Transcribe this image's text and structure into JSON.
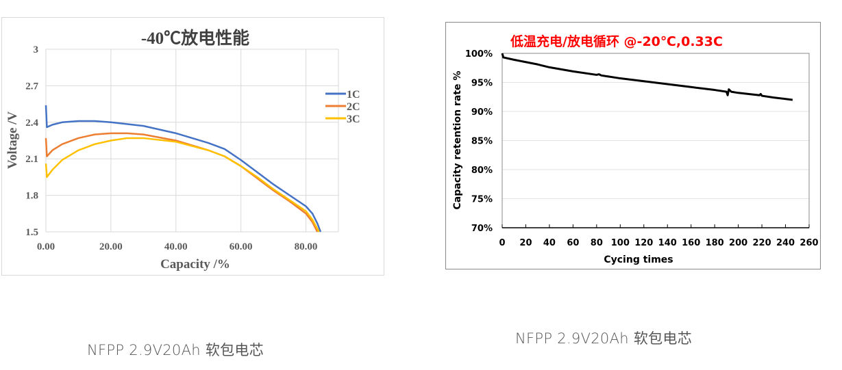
{
  "chart_data": [
    {
      "type": "line",
      "title": "-40℃放电性能",
      "xlabel": "Capacity /%",
      "ylabel": "Voltage /V",
      "xlim": [
        0,
        90
      ],
      "ylim": [
        1.5,
        3
      ],
      "x_ticks": [
        "0.00",
        "20.00",
        "40.00",
        "60.00",
        "80.00"
      ],
      "y_ticks": [
        "1.5",
        "1.8",
        "2.1",
        "2.4",
        "2.7",
        "3"
      ],
      "grid": true,
      "legend": "right",
      "series": [
        {
          "name": "1C",
          "color": "#4472C4",
          "points": [
            [
              0,
              2.54
            ],
            [
              0.3,
              2.36
            ],
            [
              2,
              2.38
            ],
            [
              5,
              2.4
            ],
            [
              10,
              2.41
            ],
            [
              15,
              2.41
            ],
            [
              20,
              2.4
            ],
            [
              30,
              2.37
            ],
            [
              40,
              2.31
            ],
            [
              50,
              2.23
            ],
            [
              55,
              2.18
            ],
            [
              60,
              2.09
            ],
            [
              65,
              1.99
            ],
            [
              70,
              1.89
            ],
            [
              75,
              1.8
            ],
            [
              80,
              1.71
            ],
            [
              82,
              1.65
            ],
            [
              83.5,
              1.57
            ],
            [
              84.5,
              1.5
            ]
          ]
        },
        {
          "name": "2C",
          "color": "#ED7D31",
          "points": [
            [
              0,
              2.27
            ],
            [
              0.3,
              2.12
            ],
            [
              2,
              2.17
            ],
            [
              5,
              2.22
            ],
            [
              10,
              2.27
            ],
            [
              15,
              2.3
            ],
            [
              20,
              2.31
            ],
            [
              25,
              2.31
            ],
            [
              30,
              2.3
            ],
            [
              40,
              2.25
            ],
            [
              50,
              2.17
            ],
            [
              55,
              2.12
            ],
            [
              60,
              2.04
            ],
            [
              65,
              1.94
            ],
            [
              70,
              1.84
            ],
            [
              75,
              1.75
            ],
            [
              80,
              1.65
            ],
            [
              82,
              1.58
            ],
            [
              83.5,
              1.5
            ]
          ]
        },
        {
          "name": "3C",
          "color": "#FFC000",
          "points": [
            [
              0,
              2.06
            ],
            [
              0.3,
              1.95
            ],
            [
              2,
              2.01
            ],
            [
              5,
              2.09
            ],
            [
              10,
              2.17
            ],
            [
              15,
              2.22
            ],
            [
              20,
              2.25
            ],
            [
              25,
              2.27
            ],
            [
              30,
              2.27
            ],
            [
              40,
              2.24
            ],
            [
              50,
              2.17
            ],
            [
              55,
              2.12
            ],
            [
              60,
              2.04
            ],
            [
              65,
              1.95
            ],
            [
              70,
              1.85
            ],
            [
              75,
              1.76
            ],
            [
              80,
              1.67
            ],
            [
              82,
              1.6
            ],
            [
              84,
              1.5
            ]
          ]
        }
      ]
    },
    {
      "type": "line",
      "title": "低温充电/放电循环 @-20℃,0.33C",
      "title_color": "#FF0000",
      "xlabel": "Cycing times",
      "ylabel": "Capacity retention rate %",
      "xlim": [
        0,
        260
      ],
      "ylim": [
        70,
        100
      ],
      "x_ticks": [
        "0",
        "20",
        "40",
        "60",
        "80",
        "100",
        "120",
        "140",
        "160",
        "180",
        "200",
        "220",
        "240",
        "260"
      ],
      "y_ticks": [
        "70%",
        "75%",
        "80%",
        "85%",
        "90%",
        "95%",
        "100%"
      ],
      "grid": true,
      "series": [
        {
          "color": "#000000",
          "points": [
            [
              0,
              100
            ],
            [
              1,
              99.3
            ],
            [
              10,
              98.9
            ],
            [
              20,
              98.5
            ],
            [
              30,
              98.1
            ],
            [
              40,
              97.6
            ],
            [
              60,
              96.9
            ],
            [
              80,
              96.3
            ],
            [
              82,
              96.4
            ],
            [
              84,
              96.2
            ],
            [
              100,
              95.7
            ],
            [
              120,
              95.2
            ],
            [
              140,
              94.7
            ],
            [
              160,
              94.2
            ],
            [
              180,
              93.7
            ],
            [
              190,
              93.4
            ],
            [
              191,
              92.8
            ],
            [
              192,
              93.8
            ],
            [
              194,
              93.4
            ],
            [
              200,
              93.2
            ],
            [
              218,
              92.8
            ],
            [
              219,
              93.0
            ],
            [
              220,
              92.7
            ],
            [
              230,
              92.4
            ],
            [
              246,
              92.0
            ]
          ]
        }
      ]
    }
  ],
  "captions": [
    "NFPP 2.9V20Ah 软包电芯",
    "NFPP 2.9V20Ah 软包电芯"
  ]
}
